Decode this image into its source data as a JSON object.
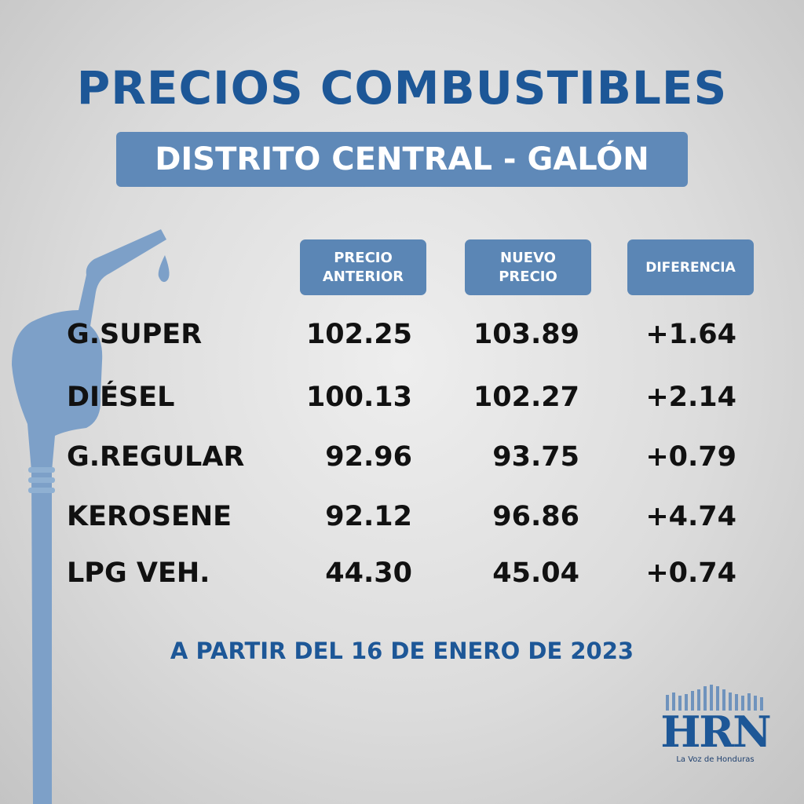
{
  "header": {
    "title": "PRECIOS COMBUSTIBLES",
    "subtitle": "DISTRITO CENTRAL - GALÓN"
  },
  "table": {
    "columns": [
      "PRECIO ANTERIOR",
      "NUEVO PRECIO",
      "DIFERENCIA"
    ],
    "rows": [
      [
        "G.SUPER",
        "102.25",
        "103.89",
        "+1.64"
      ],
      [
        "DIÉSEL",
        "100.13",
        "102.27",
        "+2.14"
      ],
      [
        "G.REGULAR",
        "92.96",
        "93.75",
        "+0.79"
      ],
      [
        "KEROSENE",
        "92.12",
        "96.86",
        "+4.74"
      ],
      [
        "LPG VEH.",
        "44.30",
        "45.04",
        "+0.74"
      ]
    ]
  },
  "footer": {
    "date": "A PARTIR DEL 16 DE ENERO DE 2023"
  },
  "logo": {
    "name": "HRN",
    "tagline": "La Voz de Honduras"
  }
}
